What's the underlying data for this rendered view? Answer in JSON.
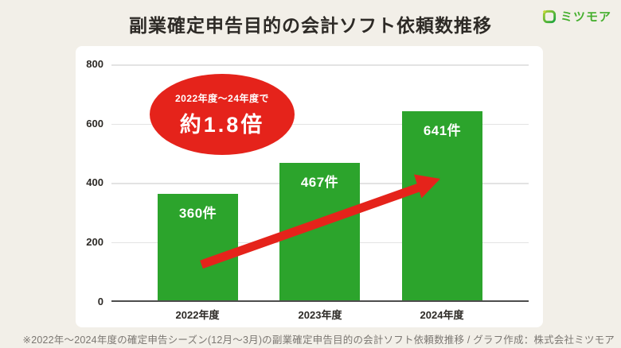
{
  "header": {
    "title": "副業確定申告目的の会計ソフト依頼数推移"
  },
  "logo": {
    "brand": "ミツモア"
  },
  "chart_data": {
    "type": "bar",
    "title": "副業確定申告目的の会計ソフト依頼数推移",
    "categories": [
      "2022年度",
      "2023年度",
      "2024年度"
    ],
    "values": [
      360,
      467,
      641
    ],
    "bar_labels": [
      "360件",
      "467件",
      "641件"
    ],
    "unit": "件",
    "xlabel": "",
    "ylabel": "",
    "ylim": [
      0,
      800
    ],
    "yticks": [
      "0",
      "200",
      "400",
      "600",
      "800"
    ],
    "grid": "horizontal-only",
    "legend": "none",
    "bar_color": "#2ca42c",
    "annotation": {
      "shape": "ellipse",
      "line1": "2022年度〜24年度で",
      "line2": "約1.8倍",
      "color": "#e5231b"
    },
    "trend_arrow": {
      "direction": "up-right",
      "color": "#e5231b"
    }
  },
  "footer": {
    "note": "※2022年〜2024年度の確定申告シーズン(12月〜3月)の副業確定申告目的の会計ソフト依頼数推移 / グラフ作成：株式会社ミツモア"
  },
  "colors": {
    "background": "#f2efe8",
    "card": "#ffffff",
    "bar_green": "#2ca42c",
    "accent_red": "#e5231b",
    "brand_green": "#45af2e",
    "title_text": "#2d2a26",
    "footer_text": "#7b7772",
    "gridline": "#e3e3e3",
    "baseline": "#4d4d4d"
  }
}
